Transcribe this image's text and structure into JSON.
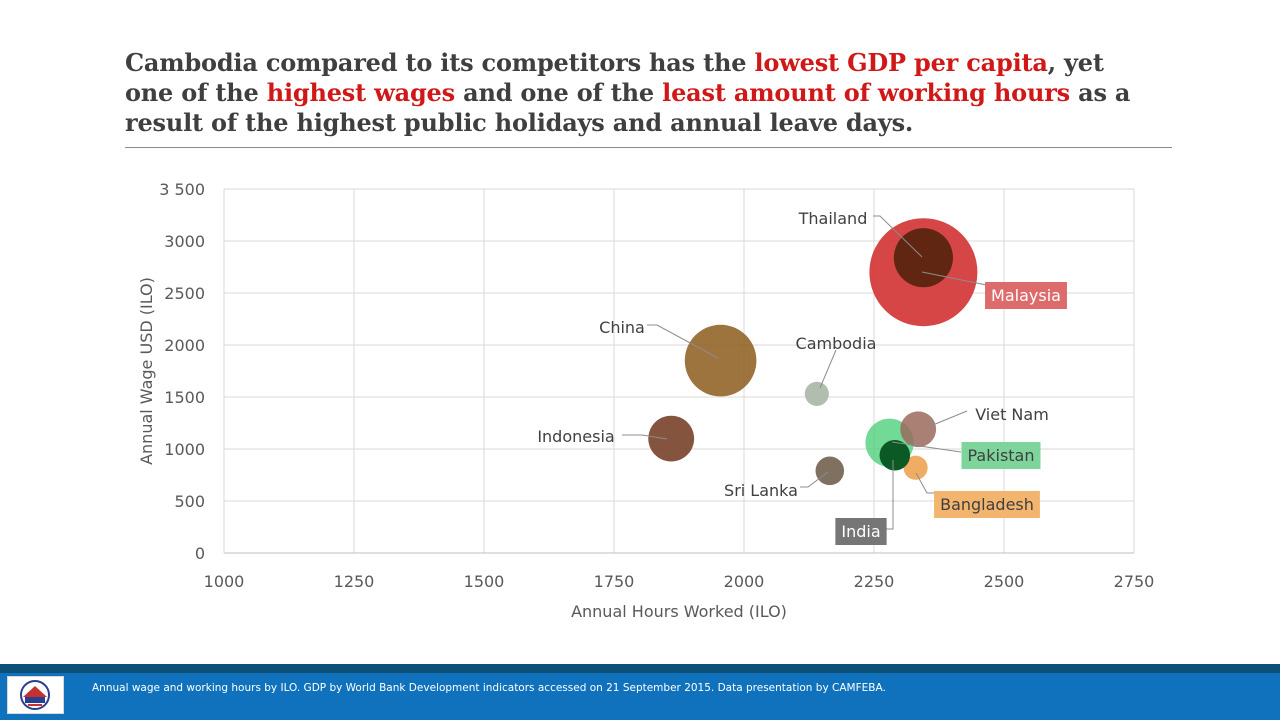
{
  "headline": {
    "line1_a": "Cambodia compared to its competitors has the ",
    "line1_hl": "lowest GDP per capita",
    "line1_b": ", yet",
    "line2_a": "one of the ",
    "line2_hl1": "highest wages",
    "line2_b": " and one of the ",
    "line2_hl2": "least amount of working hours",
    "line2_c": " as a",
    "line3": "result of the highest public holidays and annual leave days."
  },
  "footer": {
    "source": "Annual wage and working hours by ILO.  GDP by World Bank Development indicators accessed on 21 September 2015.  Data presentation by CAMFEBA."
  },
  "colors": {
    "headline_text": "#3f3f3f",
    "highlight": "#d01818",
    "footer_band": "#1072bd",
    "footer_band_dark": "#0e4f78"
  },
  "chart_data": {
    "type": "scatter",
    "variant": "bubble",
    "xlabel": "Annual Hours Worked (ILO)",
    "ylabel": "Annual Wage USD (ILO)",
    "xlim": [
      1000,
      2750
    ],
    "ylim": [
      0,
      3500
    ],
    "x_ticks": [
      1000,
      1250,
      1500,
      1750,
      2000,
      2250,
      2500,
      2750
    ],
    "y_ticks": [
      0,
      500,
      1000,
      1500,
      2000,
      2500,
      3000,
      3500
    ],
    "y_tick_labels": [
      "0",
      "500",
      "1000",
      "1500",
      "2000",
      "2500",
      "3000",
      "3 500"
    ],
    "grid": true,
    "legend": "none",
    "series": [
      {
        "name": "Malaysia",
        "x": 2345,
        "y": 2700,
        "size": 100,
        "color": "#d43c3c",
        "opacity": 0.95,
        "label_color": "#ffffff",
        "label_bg": "#de6b6b"
      },
      {
        "name": "China",
        "x": 1955,
        "y": 1850,
        "size": 44,
        "color": "#96682e",
        "opacity": 0.92,
        "label_color": "#404040",
        "label_bg": ""
      },
      {
        "name": "Thailand",
        "x": 2345,
        "y": 2840,
        "size": 30,
        "color": "#5a2510",
        "opacity": 0.95,
        "label_color": "#404040",
        "label_bg": ""
      },
      {
        "name": "Pakistan",
        "x": 2280,
        "y": 1060,
        "size": 20,
        "color": "#4fcf7c",
        "opacity": 0.8,
        "label_color": "#404040",
        "label_bg": "#7dd59c"
      },
      {
        "name": "Indonesia",
        "x": 1860,
        "y": 1100,
        "size": 18,
        "color": "#7e4b35",
        "opacity": 0.95,
        "label_color": "#404040",
        "label_bg": ""
      },
      {
        "name": "Viet Nam",
        "x": 2335,
        "y": 1190,
        "size": 11,
        "color": "#9a6a5a",
        "opacity": 0.85,
        "label_color": "#404040",
        "label_bg": ""
      },
      {
        "name": "Bangladesh",
        "x": 2330,
        "y": 820,
        "size": 5,
        "color": "#f0a85c",
        "opacity": 0.95,
        "label_color": "#404040",
        "label_bg": "#f3b56d"
      },
      {
        "name": "Sri Lanka",
        "x": 2165,
        "y": 790,
        "size": 7,
        "color": "#756452",
        "opacity": 0.92,
        "label_color": "#404040",
        "label_bg": ""
      },
      {
        "name": "Cambodia",
        "x": 2140,
        "y": 1530,
        "size": 5,
        "color": "#a9b6a6",
        "opacity": 0.9,
        "label_color": "#404040",
        "label_bg": ""
      },
      {
        "name": "India",
        "x": 2290,
        "y": 940,
        "size": 8,
        "color": "#0b5a25",
        "opacity": 1.0,
        "label_color": "#ffffff",
        "label_bg": "#767676"
      }
    ]
  }
}
